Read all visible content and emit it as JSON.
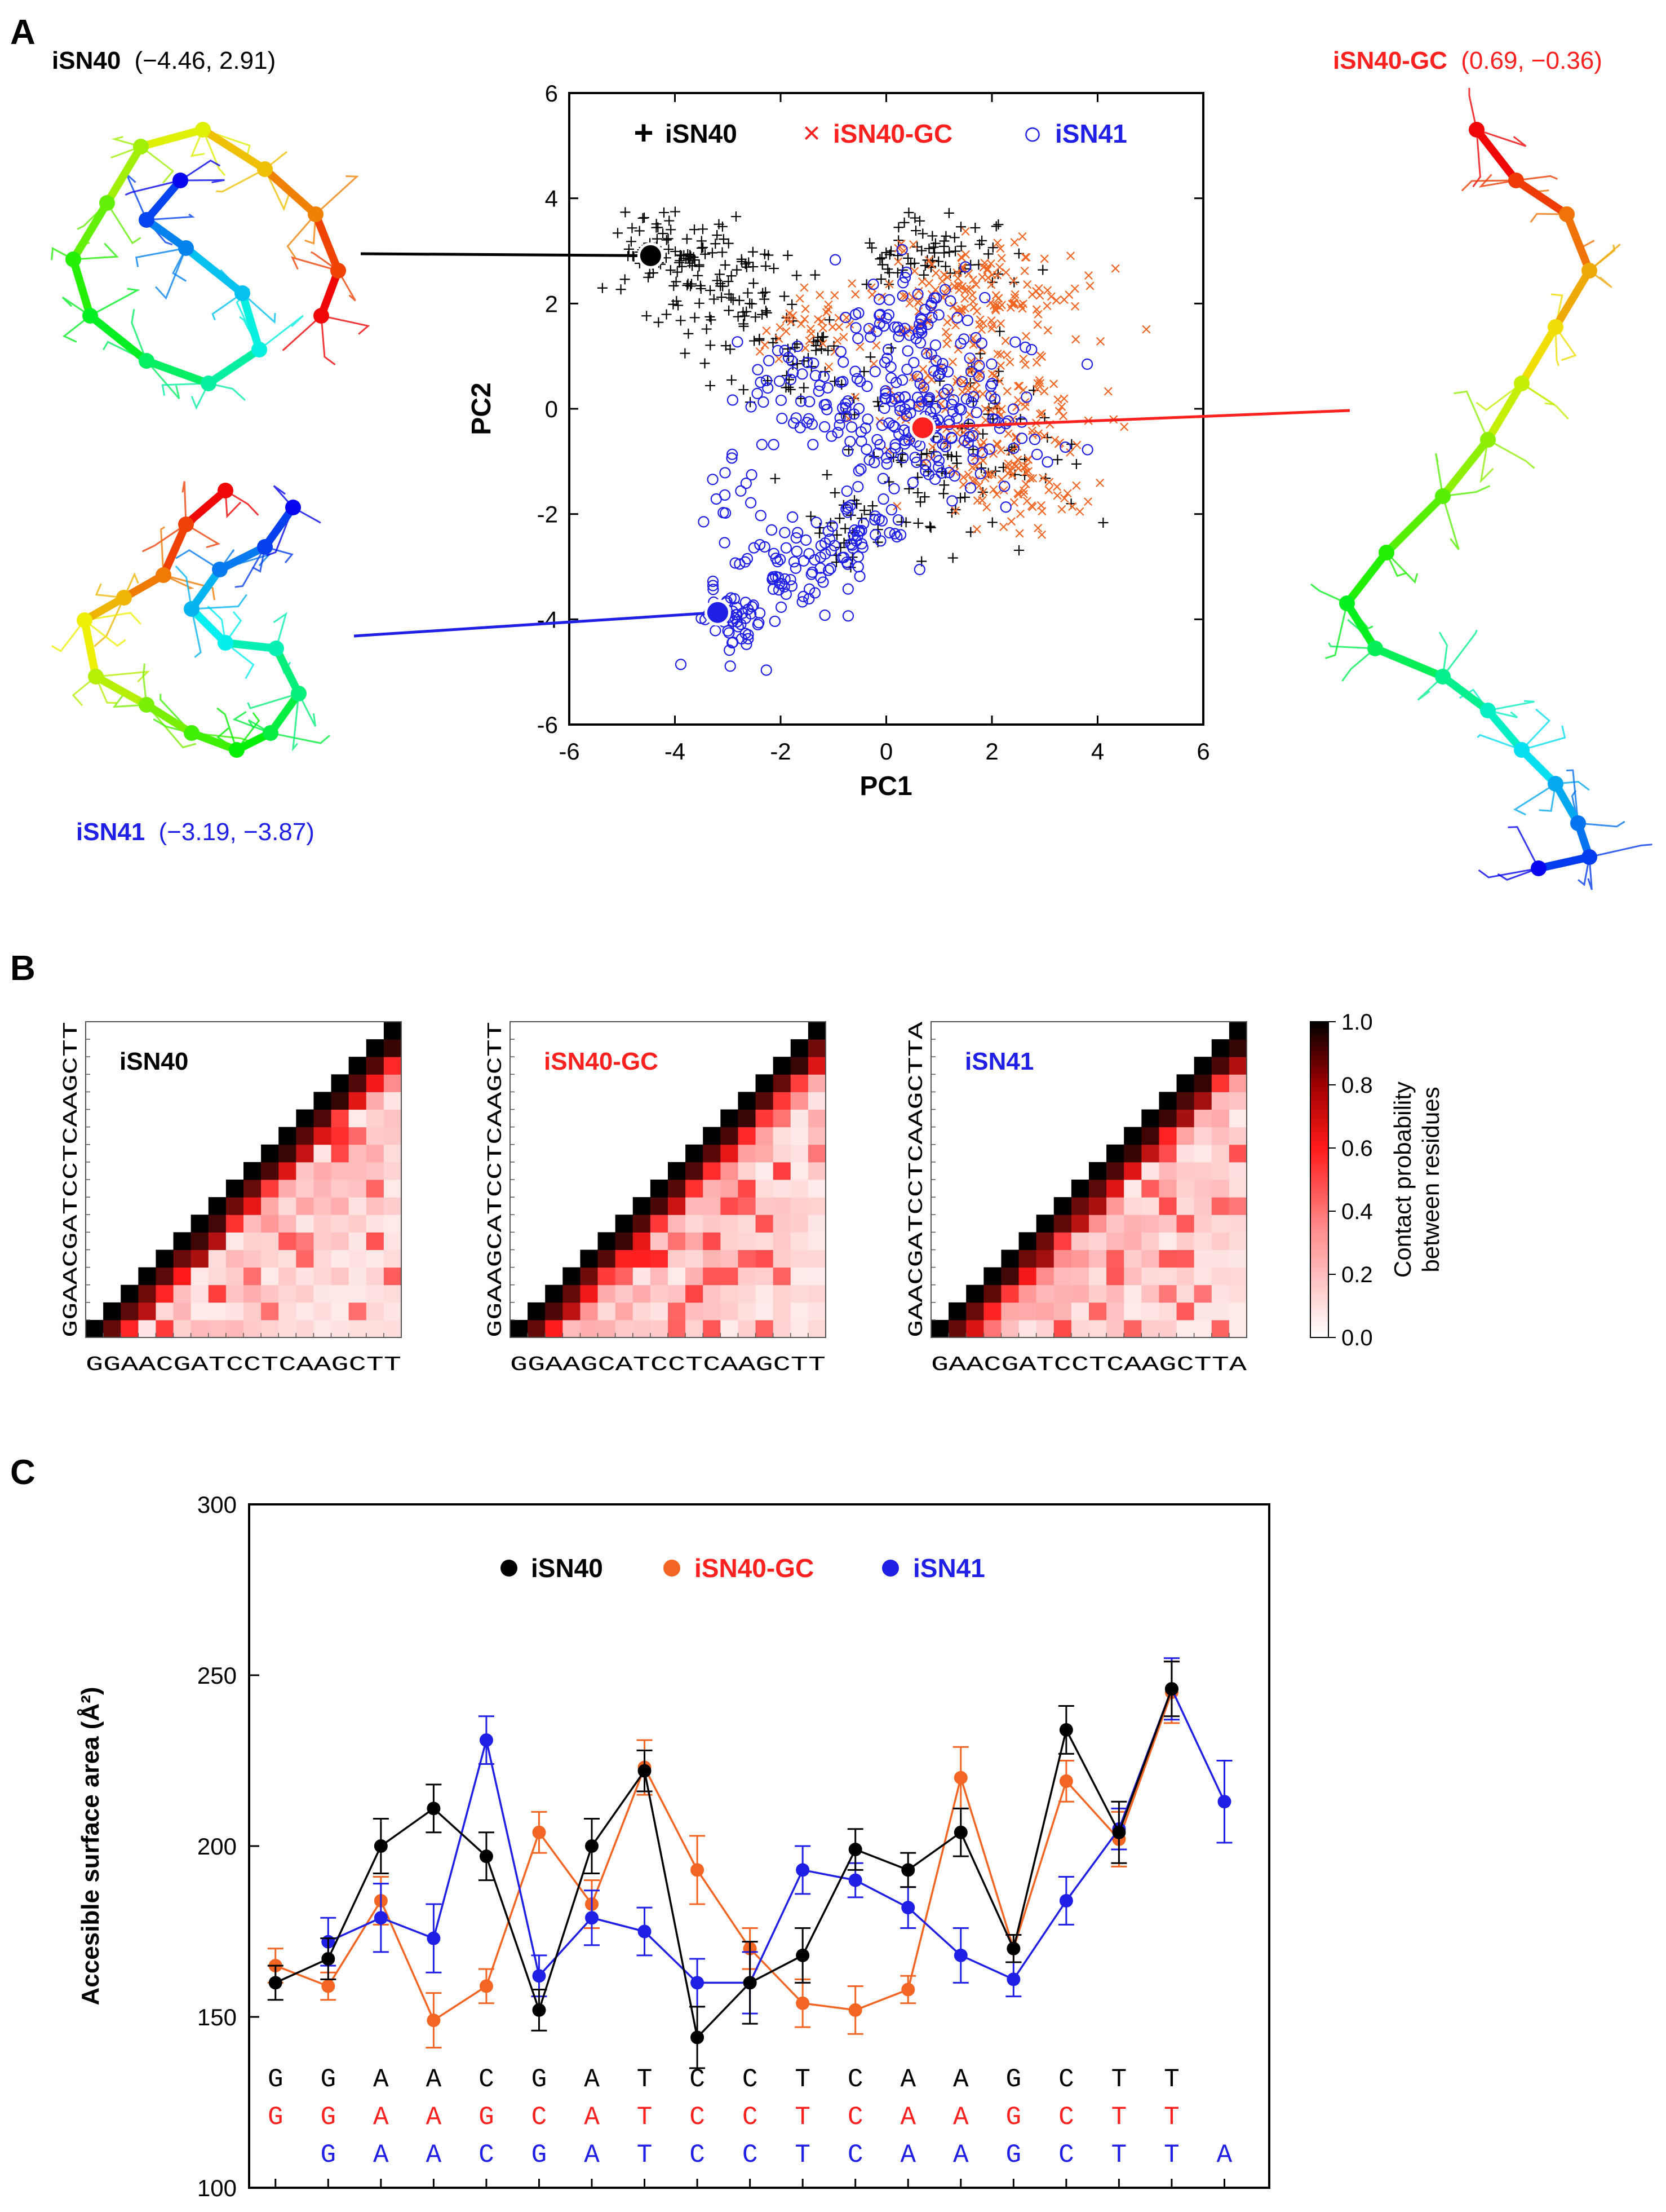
{
  "panels": {
    "a": {
      "letter": "A"
    },
    "b": {
      "letter": "B"
    },
    "c": {
      "letter": "C"
    }
  },
  "colors": {
    "iSN40": "#000000",
    "iSN40-GC": "#ff2020",
    "iSN40-GC_marker": "#f26522",
    "iSN41": "#1f1fe6"
  },
  "structures": [
    {
      "name": "iSN40",
      "coords": "(−4.46, 2.91)",
      "color": "#000000",
      "icon": "molecule-structure-icon"
    },
    {
      "name": "iSN40-GC",
      "coords": "(0.69, −0.36)",
      "color": "#ff2020",
      "icon": "molecule-structure-icon"
    },
    {
      "name": "iSN41",
      "coords": "(−3.19, −3.87)",
      "color": "#1f1fe6",
      "icon": "molecule-structure-icon"
    }
  ],
  "chart_data": [
    {
      "id": "pca",
      "type": "scatter",
      "title": "",
      "xlabel": "PC1",
      "ylabel": "PC2",
      "xlim": [
        -6,
        6
      ],
      "ylim": [
        -6,
        6
      ],
      "xticks": [
        "-6",
        "-4",
        "-2",
        "0",
        "2",
        "4",
        "6"
      ],
      "yticks": [
        "-6",
        "-4",
        "-2",
        "0",
        "2",
        "4",
        "6"
      ],
      "legend": [
        {
          "symbol": "+",
          "name": "iSN40"
        },
        {
          "symbol": "×",
          "name": "iSN40-GC"
        },
        {
          "symbol": "○",
          "name": "iSN41"
        }
      ],
      "highlighted_points": [
        {
          "series": "iSN40",
          "x": -4.46,
          "y": 2.91
        },
        {
          "series": "iSN40-GC",
          "x": 0.69,
          "y": -0.36
        },
        {
          "series": "iSN41",
          "x": -3.19,
          "y": -3.87
        }
      ],
      "clusters": [
        {
          "series": "iSN40",
          "cx": -4.0,
          "cy": 2.9,
          "sx": 0.55,
          "sy": 0.45,
          "n": 90
        },
        {
          "series": "iSN40",
          "cx": -2.9,
          "cy": 2.0,
          "sx": 0.6,
          "sy": 0.55,
          "n": 70
        },
        {
          "series": "iSN40",
          "cx": -1.6,
          "cy": 1.0,
          "sx": 0.55,
          "sy": 0.5,
          "n": 40
        },
        {
          "series": "iSN40",
          "cx": 0.8,
          "cy": 2.9,
          "sx": 0.7,
          "sy": 0.35,
          "n": 70
        },
        {
          "series": "iSN40",
          "cx": 1.5,
          "cy": -0.8,
          "sx": 1.2,
          "sy": 0.9,
          "n": 90
        },
        {
          "series": "iSN40",
          "cx": -0.4,
          "cy": -2.2,
          "sx": 0.6,
          "sy": 0.4,
          "n": 25
        },
        {
          "series": "iSN40-GC",
          "cx": 1.8,
          "cy": 2.2,
          "sx": 1.0,
          "sy": 0.5,
          "n": 140
        },
        {
          "series": "iSN40-GC",
          "cx": 1.8,
          "cy": 0.0,
          "sx": 1.1,
          "sy": 0.9,
          "n": 170
        },
        {
          "series": "iSN40-GC",
          "cx": -1.3,
          "cy": 1.6,
          "sx": 0.6,
          "sy": 0.4,
          "n": 40
        },
        {
          "series": "iSN40-GC",
          "cx": 2.6,
          "cy": -1.4,
          "sx": 0.6,
          "sy": 0.5,
          "n": 60
        },
        {
          "series": "iSN41",
          "cx": 0.8,
          "cy": -0.3,
          "sx": 1.1,
          "sy": 0.85,
          "n": 200
        },
        {
          "series": "iSN41",
          "cx": 0.4,
          "cy": 1.8,
          "sx": 0.6,
          "sy": 0.6,
          "n": 60
        },
        {
          "series": "iSN41",
          "cx": -1.8,
          "cy": -3.0,
          "sx": 0.6,
          "sy": 0.45,
          "n": 60
        },
        {
          "series": "iSN41",
          "cx": -0.5,
          "cy": -2.6,
          "sx": 0.5,
          "sy": 0.35,
          "n": 35
        },
        {
          "series": "iSN41",
          "cx": -2.9,
          "cy": -4.0,
          "sx": 0.35,
          "sy": 0.35,
          "n": 50
        },
        {
          "series": "iSN41",
          "cx": -1.6,
          "cy": 0.4,
          "sx": 0.7,
          "sy": 0.6,
          "n": 40
        },
        {
          "series": "iSN41",
          "cx": -3.0,
          "cy": -1.5,
          "sx": 0.3,
          "sy": 0.5,
          "n": 15
        }
      ]
    },
    {
      "id": "contact-maps",
      "type": "heatmap",
      "colorbar": {
        "label_line1": "Contact probability",
        "label_line2": "between residues",
        "ticks": [
          "0.0",
          "0.2",
          "0.4",
          "0.6",
          "0.8",
          "1.0"
        ],
        "range": [
          0,
          1
        ]
      },
      "maps": [
        {
          "name": "iSN40",
          "sequence": "GGAACGATCCTCAAGCTT",
          "color": "#000000",
          "seed": 11
        },
        {
          "name": "iSN40-GC",
          "sequence": "GGAAGCATCCTCAAGCTT",
          "color": "#ff2020",
          "seed": 23
        },
        {
          "name": "iSN41",
          "sequence": "GAACGATCCTCAAGCTTA",
          "color": "#1f1fe6",
          "seed": 37
        }
      ]
    },
    {
      "id": "asa",
      "type": "line",
      "title": "",
      "xlabel": "",
      "ylabel": "Accesible surface area (Å²)",
      "ylim": [
        100,
        300
      ],
      "yticks": [
        "100",
        "150",
        "200",
        "250",
        "300"
      ],
      "n_positions": 19,
      "legend": [
        "iSN40",
        "iSN40-GC",
        "iSN41"
      ],
      "sequences": [
        {
          "name": "iSN40",
          "start": 1,
          "letters": [
            "G",
            "G",
            "A",
            "A",
            "C",
            "G",
            "A",
            "T",
            "C",
            "C",
            "T",
            "C",
            "A",
            "A",
            "G",
            "C",
            "T",
            "T"
          ]
        },
        {
          "name": "iSN40-GC",
          "start": 1,
          "letters": [
            "G",
            "G",
            "A",
            "A",
            "G",
            "C",
            "A",
            "T",
            "C",
            "C",
            "T",
            "C",
            "A",
            "A",
            "G",
            "C",
            "T",
            "T"
          ]
        },
        {
          "name": "iSN41",
          "start": 2,
          "letters": [
            "G",
            "A",
            "A",
            "C",
            "G",
            "A",
            "T",
            "C",
            "C",
            "T",
            "C",
            "A",
            "A",
            "G",
            "C",
            "T",
            "T",
            "A"
          ]
        }
      ],
      "series": [
        {
          "name": "iSN40",
          "start": 1,
          "values": [
            160,
            167,
            200,
            211,
            197,
            152,
            200,
            222,
            144,
            160,
            168,
            199,
            193,
            204,
            170,
            234,
            204,
            246
          ],
          "errors": [
            5,
            6,
            8,
            7,
            7,
            6,
            8,
            6,
            9,
            12,
            8,
            6,
            5,
            7,
            4,
            7,
            9,
            8
          ]
        },
        {
          "name": "iSN40-GC",
          "start": 1,
          "values": [
            165,
            159,
            184,
            149,
            159,
            204,
            183,
            223,
            193,
            170,
            154,
            152,
            158,
            220,
            170,
            219,
            202,
            245
          ],
          "errors": [
            5,
            4,
            7,
            8,
            5,
            6,
            7,
            8,
            10,
            6,
            7,
            7,
            4,
            9,
            4,
            6,
            8,
            9
          ]
        },
        {
          "name": "iSN41",
          "start": 2,
          "values": [
            172,
            179,
            173,
            231,
            162,
            179,
            175,
            160,
            160,
            193,
            190,
            182,
            168,
            161,
            184,
            205,
            246,
            213
          ],
          "errors": [
            7,
            10,
            10,
            7,
            6,
            8,
            7,
            7,
            9,
            7,
            5,
            6,
            8,
            5,
            7,
            6,
            9,
            12
          ]
        }
      ]
    }
  ]
}
